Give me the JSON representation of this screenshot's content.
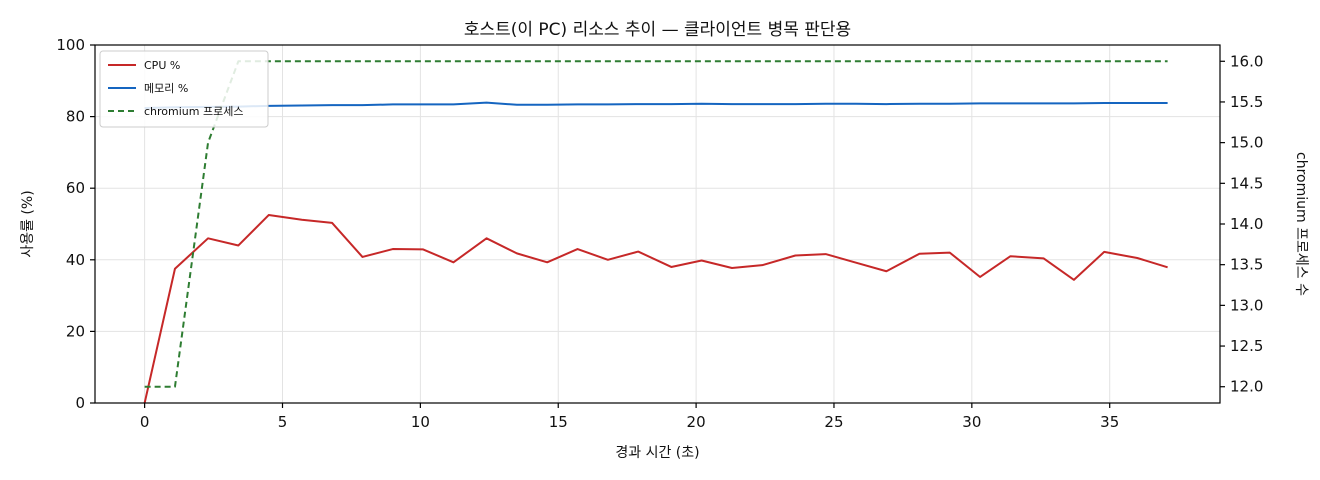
{
  "chart_data": {
    "type": "line",
    "title": "호스트(이 PC) 리소스 추이 — 클라이언트 병목 판단용",
    "xlabel": "경과 시간 (초)",
    "ylabel": "사용률 (%)",
    "y2label": "chromium 프로세스 수",
    "xlim": [
      -1.8,
      39.0
    ],
    "ylim": [
      0,
      100
    ],
    "y2lim": [
      11.8,
      16.2
    ],
    "xticks": [
      0,
      5,
      10,
      15,
      20,
      25,
      30,
      35
    ],
    "yticks": [
      0,
      20,
      40,
      60,
      80,
      100
    ],
    "y2ticks": [
      12.0,
      12.5,
      13.0,
      13.5,
      14.0,
      14.5,
      15.0,
      15.5,
      16.0
    ],
    "y2tick_labels": [
      "12.0",
      "12.5",
      "13.0",
      "13.5",
      "14.0",
      "14.5",
      "15.0",
      "15.5",
      "16.0"
    ],
    "grid": true,
    "legend_position": "top-left",
    "x": [
      0,
      1.1,
      2.3,
      3.4,
      4.5,
      5.7,
      6.8,
      7.9,
      9.0,
      10.1,
      11.2,
      12.4,
      13.5,
      14.6,
      15.7,
      16.8,
      17.9,
      19.1,
      20.2,
      21.3,
      22.4,
      23.6,
      24.7,
      25.8,
      26.9,
      28.1,
      29.2,
      30.3,
      31.4,
      32.6,
      33.7,
      34.8,
      36.0,
      37.1
    ],
    "series": [
      {
        "name": "CPU %",
        "axis": "left",
        "color": "#c62828",
        "style": "solid",
        "values": [
          0,
          37.5,
          46.0,
          44.0,
          52.5,
          51.2,
          50.3,
          40.8,
          43.0,
          42.9,
          39.3,
          46.0,
          41.8,
          39.3,
          43.0,
          40.0,
          42.3,
          38.0,
          39.8,
          37.7,
          38.5,
          41.2,
          41.6,
          39.2,
          36.8,
          41.7,
          42.0,
          35.2,
          41.0,
          40.4,
          34.4,
          42.2,
          40.5,
          37.9
        ]
      },
      {
        "name": "메모리 %",
        "axis": "left",
        "color": "#1565c0",
        "style": "solid",
        "values": [
          82.4,
          82.6,
          82.7,
          82.8,
          83.0,
          83.1,
          83.2,
          83.2,
          83.4,
          83.4,
          83.4,
          83.9,
          83.3,
          83.3,
          83.4,
          83.4,
          83.5,
          83.5,
          83.6,
          83.5,
          83.5,
          83.5,
          83.6,
          83.6,
          83.5,
          83.6,
          83.6,
          83.7,
          83.7,
          83.7,
          83.7,
          83.8,
          83.8,
          83.8
        ]
      },
      {
        "name": "chromium 프로세스",
        "axis": "right",
        "color": "#2e7d32",
        "style": "dashed",
        "values": [
          12,
          12,
          15,
          16,
          16,
          16,
          16,
          16,
          16,
          16,
          16,
          16,
          16,
          16,
          16,
          16,
          16,
          16,
          16,
          16,
          16,
          16,
          16,
          16,
          16,
          16,
          16,
          16,
          16,
          16,
          16,
          16,
          16,
          16
        ]
      }
    ]
  }
}
